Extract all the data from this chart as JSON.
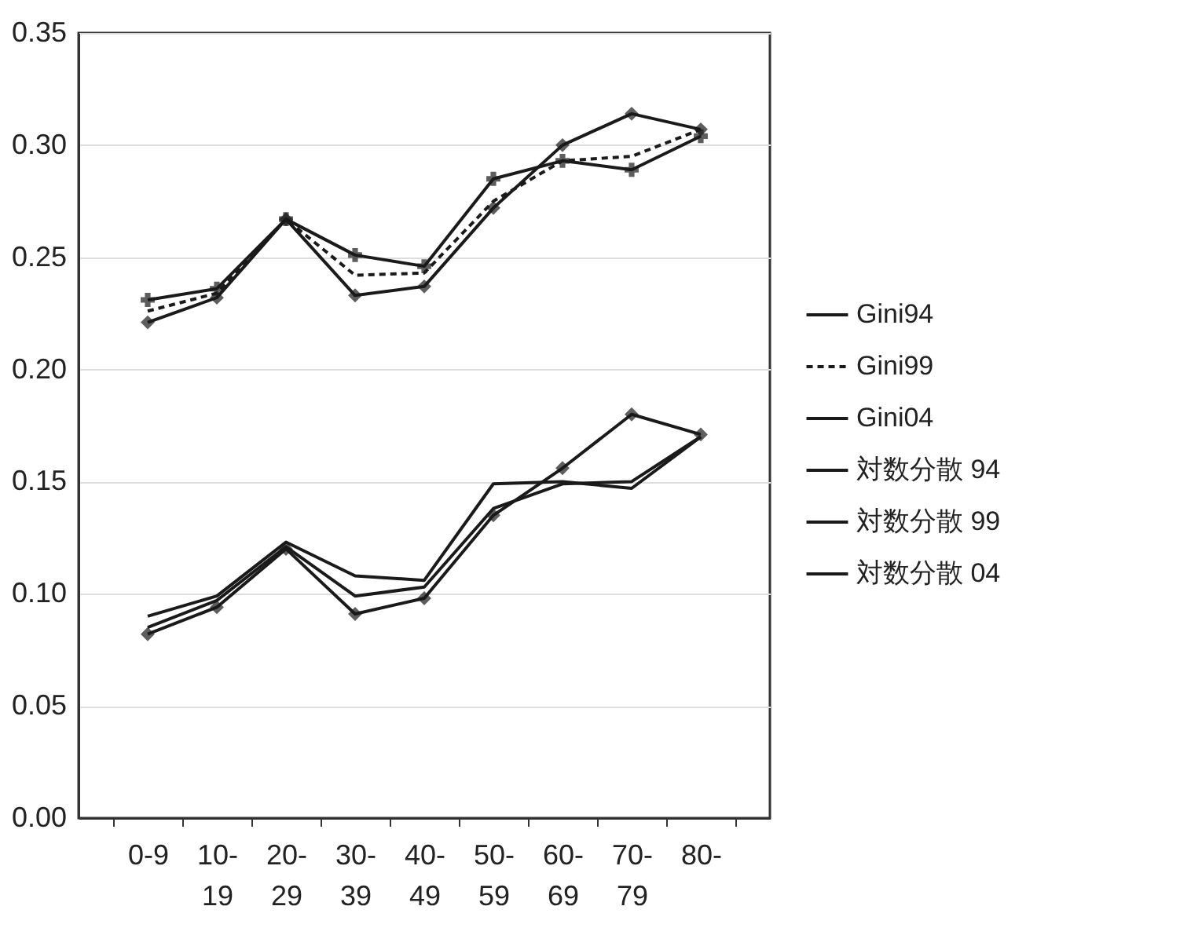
{
  "chart_data": {
    "type": "line",
    "categories": [
      "0-9",
      "10-19",
      "20-29",
      "30-39",
      "40-49",
      "50-59",
      "60-69",
      "70-79",
      "80-"
    ],
    "series": [
      {
        "name": "Gini94",
        "color": "#1a1a1a",
        "marker": "diamond",
        "line_style": "solid",
        "values": [
          0.221,
          0.232,
          0.267,
          0.233,
          0.237,
          0.272,
          0.3,
          0.314,
          0.307
        ]
      },
      {
        "name": "Gini99",
        "color": "#1a1a1a",
        "marker": "none",
        "line_style": "dashed",
        "values": [
          0.226,
          0.234,
          0.267,
          0.242,
          0.243,
          0.275,
          0.293,
          0.295,
          0.307
        ]
      },
      {
        "name": "Gini04",
        "color": "#1a1a1a",
        "marker": "cross",
        "line_style": "solid",
        "values": [
          0.231,
          0.236,
          0.267,
          0.251,
          0.246,
          0.285,
          0.293,
          0.289,
          0.304
        ]
      },
      {
        "name": "対数分散 94",
        "color": "#1a1a1a",
        "marker": "diamond",
        "line_style": "solid",
        "values": [
          0.082,
          0.094,
          0.12,
          0.091,
          0.098,
          0.135,
          0.156,
          0.18,
          0.171
        ]
      },
      {
        "name": "対数分散 99",
        "color": "#1a1a1a",
        "marker": "none",
        "line_style": "solid",
        "values": [
          0.085,
          0.097,
          0.121,
          0.099,
          0.103,
          0.138,
          0.149,
          0.15,
          0.17
        ]
      },
      {
        "name": "対数分散 04",
        "color": "#1a1a1a",
        "marker": "none",
        "line_style": "solid",
        "values": [
          0.09,
          0.099,
          0.123,
          0.108,
          0.106,
          0.149,
          0.15,
          0.147,
          0.17
        ]
      }
    ],
    "ylim": [
      0,
      0.35
    ],
    "yticks": [
      {
        "value": 0,
        "label": "0.00"
      },
      {
        "value": 0.05,
        "label": "0.05"
      },
      {
        "value": 0.1,
        "label": "0.10"
      },
      {
        "value": 0.15,
        "label": "0.15"
      },
      {
        "value": 0.2,
        "label": "0.20"
      },
      {
        "value": 0.25,
        "label": "0.25"
      },
      {
        "value": 0.3,
        "label": "0.30"
      },
      {
        "value": 0.35,
        "label": "0.35"
      }
    ],
    "grid": "y",
    "legend": "right"
  }
}
